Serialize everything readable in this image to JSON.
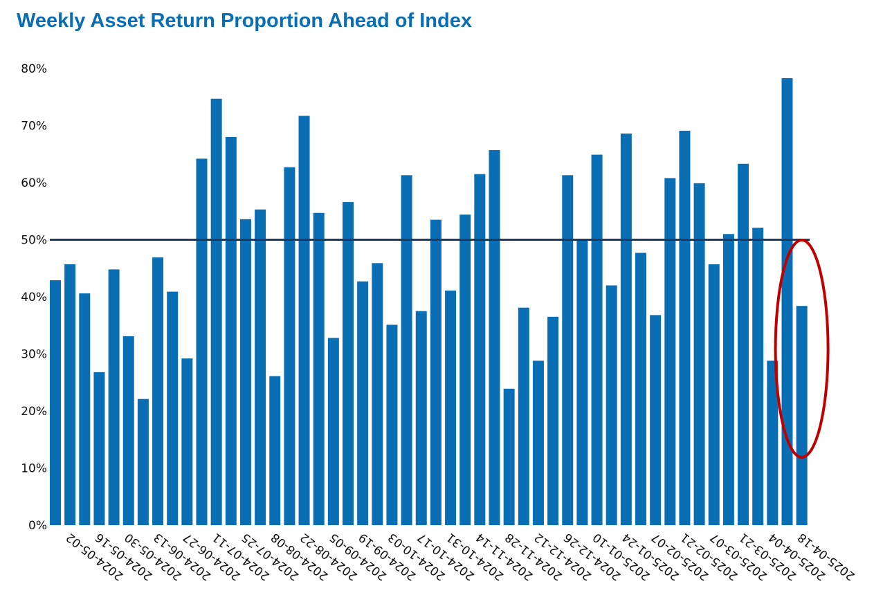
{
  "chart_data": {
    "type": "bar",
    "title": "Weekly Asset Return Proportion Ahead of Index",
    "xlabel": "",
    "ylabel": "",
    "ylim": [
      0,
      80
    ],
    "ytick_values": [
      0,
      10,
      20,
      30,
      40,
      50,
      60,
      70,
      80
    ],
    "ytick_labels": [
      "0%",
      "10%",
      "20%",
      "30%",
      "40%",
      "50%",
      "60%",
      "70%",
      "80%"
    ],
    "xtick_labels": [
      "2024-05-02",
      "2024-05-16",
      "2024-05-30",
      "2024-06-13",
      "2024-06-27",
      "2024-07-11",
      "2024-07-25",
      "2024-08-08",
      "2024-08-22",
      "2024-09-05",
      "2024-09-19",
      "2024-10-03",
      "2024-10-17",
      "2024-10-31",
      "2024-11-14",
      "2024-11-28",
      "2024-12-12",
      "2024-12-26",
      "2025-01-10",
      "2025-01-24",
      "2025-02-07",
      "2025-02-21",
      "2025-03-07",
      "2025-03-21",
      "2025-04-04",
      "2025-04-18"
    ],
    "values": [
      42.9,
      45.7,
      40.6,
      26.8,
      44.8,
      33.1,
      22.1,
      46.9,
      40.9,
      29.2,
      64.2,
      74.7,
      68.0,
      53.6,
      55.3,
      26.1,
      62.7,
      71.7,
      54.7,
      32.8,
      56.6,
      42.7,
      45.9,
      35.1,
      61.3,
      37.5,
      53.5,
      41.1,
      54.4,
      61.5,
      65.7,
      23.9,
      38.1,
      28.8,
      36.5,
      61.3,
      50.1,
      64.9,
      42.0,
      68.6,
      47.7,
      36.8,
      60.8,
      69.1,
      59.9,
      45.7,
      51.0,
      63.3,
      52.1,
      28.8,
      78.3,
      38.4
    ],
    "reference_line": 50,
    "bar_color": "#0A6EB4",
    "reference_line_color": "#1F3A5F",
    "annotation": {
      "shape": "ellipse",
      "color": "#C00000",
      "target": "2025-04-18"
    },
    "grid": false,
    "legend": "none"
  }
}
